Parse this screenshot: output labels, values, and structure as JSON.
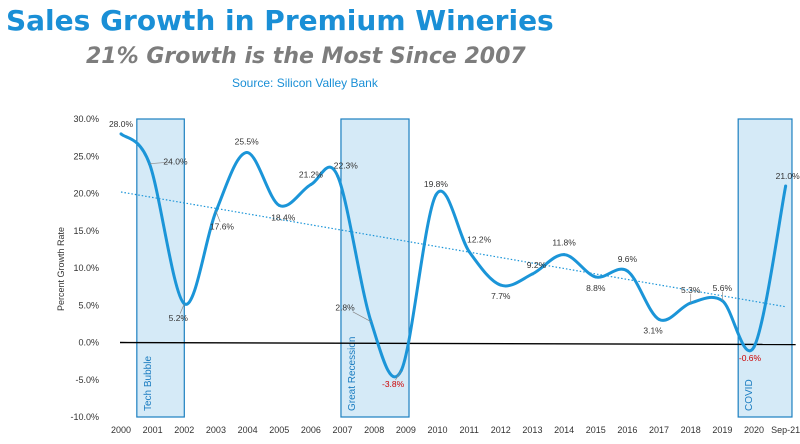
{
  "title": "Sales Growth in Premium Wineries",
  "subtitle": "21% Growth is the Most Since 2007",
  "source": "Source: Silicon Valley Bank",
  "colors": {
    "title": "#1a8fd6",
    "subtitle": "#7d7d7d",
    "line": "#1b95d8",
    "trend": "#1b95d8",
    "band_fill": "#d5eaf7",
    "band_stroke": "#1b7fc0",
    "negative_label": "#cc0000",
    "label": "#333333",
    "zero_line": "#000000"
  },
  "chart_data": {
    "type": "line",
    "title": "Sales Growth in Premium Wineries",
    "subtitle": "21% Growth is the Most Since 2007",
    "xlabel": "",
    "ylabel": "Percent Growth Rate",
    "ylim": [
      -10,
      30
    ],
    "y_ticks": [
      "-10.0%",
      "-5.0%",
      "0.0%",
      "5.0%",
      "10.0%",
      "15.0%",
      "20.0%",
      "25.0%",
      "30.0%"
    ],
    "x_ticks": [
      "2000",
      "2001",
      "2002",
      "2003",
      "2004",
      "2005",
      "2006",
      "2007",
      "2008",
      "2009",
      "2010",
      "2011",
      "2012",
      "2013",
      "2014",
      "2015",
      "2016",
      "2017",
      "2018",
      "2019",
      "2020",
      "Sep-21"
    ],
    "series": [
      {
        "points": [
          {
            "x": 0.0,
            "y": 28.0
          },
          {
            "x": 0.9,
            "y": 24.0
          },
          {
            "x": 2.0,
            "y": 5.2
          },
          {
            "x": 3.0,
            "y": 17.6
          },
          {
            "x": 3.97,
            "y": 25.5
          },
          {
            "x": 5.0,
            "y": 18.4
          },
          {
            "x": 6.0,
            "y": 21.2
          },
          {
            "x": 6.85,
            "y": 22.3
          },
          {
            "x": 7.9,
            "y": 2.8
          },
          {
            "x": 8.85,
            "y": -3.8
          },
          {
            "x": 9.95,
            "y": 19.8
          },
          {
            "x": 11.0,
            "y": 12.2
          },
          {
            "x": 12.0,
            "y": 7.7
          },
          {
            "x": 13.0,
            "y": 9.2
          },
          {
            "x": 14.0,
            "y": 11.8
          },
          {
            "x": 15.0,
            "y": 8.8
          },
          {
            "x": 16.0,
            "y": 9.6
          },
          {
            "x": 17.0,
            "y": 3.1
          },
          {
            "x": 18.0,
            "y": 5.3
          },
          {
            "x": 19.0,
            "y": 5.6
          },
          {
            "x": 20.0,
            "y": -0.6
          },
          {
            "x": 21.0,
            "y": 21.0
          }
        ]
      }
    ],
    "trendline": {
      "x": [
        0,
        21
      ],
      "y": [
        20.2,
        4.8
      ]
    },
    "data_labels": [
      {
        "text": "28.0%",
        "x": 0.0,
        "y": 28.0,
        "negative": false
      },
      {
        "text": "24.0%",
        "x": 0.9,
        "y": 24.0,
        "negative": false
      },
      {
        "text": "5.2%",
        "x": 2.0,
        "y": 5.2,
        "negative": false
      },
      {
        "text": "17.6%",
        "x": 3.0,
        "y": 17.6,
        "negative": false
      },
      {
        "text": "25.5%",
        "x": 3.97,
        "y": 25.5,
        "negative": false
      },
      {
        "text": "18.4%",
        "x": 5.0,
        "y": 18.4,
        "negative": false
      },
      {
        "text": "21.2%",
        "x": 6.0,
        "y": 21.2,
        "negative": false
      },
      {
        "text": "22.3%",
        "x": 6.85,
        "y": 22.3,
        "negative": false
      },
      {
        "text": "2.8%",
        "x": 7.9,
        "y": 2.8,
        "negative": false
      },
      {
        "text": "-3.8%",
        "x": 8.85,
        "y": -3.8,
        "negative": true
      },
      {
        "text": "19.8%",
        "x": 9.95,
        "y": 19.8,
        "negative": false
      },
      {
        "text": "12.2%",
        "x": 11.0,
        "y": 12.2,
        "negative": false
      },
      {
        "text": "7.7%",
        "x": 12.0,
        "y": 7.7,
        "negative": false
      },
      {
        "text": "9.2%",
        "x": 13.0,
        "y": 9.2,
        "negative": false
      },
      {
        "text": "11.8%",
        "x": 14.0,
        "y": 11.8,
        "negative": false
      },
      {
        "text": "8.8%",
        "x": 15.0,
        "y": 8.8,
        "negative": false
      },
      {
        "text": "9.6%",
        "x": 16.0,
        "y": 9.6,
        "negative": false
      },
      {
        "text": "3.1%",
        "x": 17.0,
        "y": 3.1,
        "negative": false
      },
      {
        "text": "5.3%",
        "x": 18.0,
        "y": 5.3,
        "negative": false
      },
      {
        "text": "5.6%",
        "x": 19.0,
        "y": 5.6,
        "negative": false
      },
      {
        "text": "-0.6%",
        "x": 20.0,
        "y": -0.6,
        "negative": true
      },
      {
        "text": "21.0%",
        "x": 21.0,
        "y": 21.0,
        "negative": false
      }
    ],
    "bands": [
      {
        "label": "Tech Bubble",
        "x_start": 0.5,
        "x_end": 2.0
      },
      {
        "label": "Great Recession",
        "x_start": 6.95,
        "x_end": 9.1
      },
      {
        "label": "COVID",
        "x_start": 19.5,
        "x_end": 21.2
      }
    ],
    "grid": false,
    "legend": "none"
  }
}
